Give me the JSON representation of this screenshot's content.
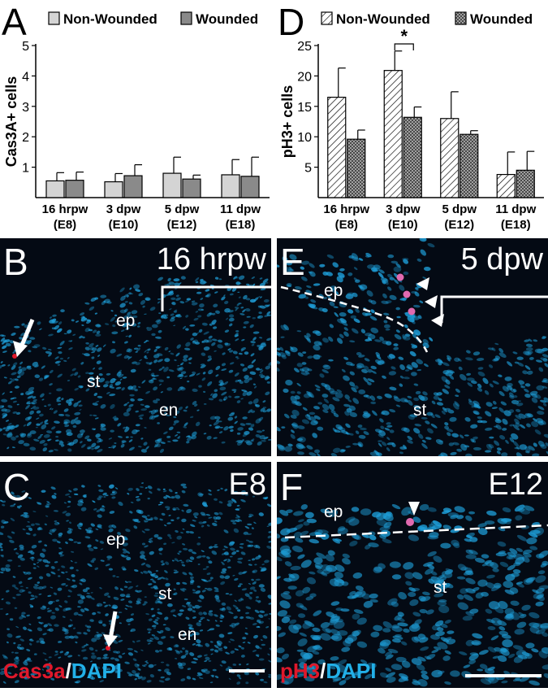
{
  "panels": {
    "A": "A",
    "B": "B",
    "C": "C",
    "D": "D",
    "E": "E",
    "F": "F"
  },
  "chart_data": [
    {
      "type": "bar",
      "panel": "A",
      "ylabel": "Cas3A+ cells",
      "ylim": [
        0,
        5
      ],
      "yticks": [
        1,
        2,
        3,
        4,
        5
      ],
      "categories": [
        [
          "16 hrpw",
          "(E8)"
        ],
        [
          "3 dpw",
          "(E10)"
        ],
        [
          "5 dpw",
          "(E12)"
        ],
        [
          "11 dpw",
          "(E18)"
        ]
      ],
      "series": [
        {
          "name": "Non-Wounded",
          "values": [
            0.55,
            0.52,
            0.8,
            0.75
          ],
          "err": [
            0.27,
            0.27,
            0.53,
            0.5
          ],
          "color": "#d4d4d4"
        },
        {
          "name": "Wounded",
          "values": [
            0.57,
            0.72,
            0.61,
            0.7
          ],
          "err": [
            0.27,
            0.36,
            0.13,
            0.63
          ],
          "color": "#8a8a8a"
        }
      ],
      "legend": "top"
    },
    {
      "type": "bar",
      "panel": "D",
      "ylabel": "pH3+ cells",
      "ylim": [
        0,
        25
      ],
      "yticks": [
        5,
        10,
        15,
        20,
        25
      ],
      "categories": [
        [
          "16 hrpw",
          "(E8)"
        ],
        [
          "3 dpw",
          "(E10)"
        ],
        [
          "5 dpw",
          "(E12)"
        ],
        [
          "11 dpw",
          "(E18)"
        ]
      ],
      "series": [
        {
          "name": "Non-Wounded",
          "values": [
            16.5,
            20.9,
            13.0,
            3.8
          ],
          "err": [
            4.8,
            3.2,
            4.4,
            3.7
          ],
          "pattern": "diagonal-hatch"
        },
        {
          "name": "Wounded",
          "values": [
            9.6,
            13.2,
            10.4,
            4.5
          ],
          "err": [
            1.5,
            1.7,
            0.6,
            3.1
          ],
          "pattern": "crosshatch"
        }
      ],
      "significance": {
        "category": 1,
        "label": "*"
      },
      "legend": "top"
    }
  ],
  "images": {
    "B": {
      "title": "16 hrpw",
      "labels": {
        "ep": "ep",
        "st": "st",
        "en": "en"
      }
    },
    "C": {
      "title": "E8",
      "labels": {
        "ep": "ep",
        "st": "st",
        "en": "en"
      },
      "stain_red": "Cas3a",
      "stain_sep": "/",
      "stain_blue": "DAPI"
    },
    "E": {
      "title": "5 dpw",
      "labels": {
        "ep": "ep",
        "st": "st"
      }
    },
    "F": {
      "title": "E12",
      "labels": {
        "ep": "ep",
        "st": "st"
      },
      "stain_red": "pH3",
      "stain_sep": "/",
      "stain_blue": "DAPI"
    }
  },
  "colors": {
    "nuclei": "#1e9ed8",
    "stain_red": "#e0182b",
    "stain_blue": "#22b0e8",
    "background": "#040a14"
  }
}
